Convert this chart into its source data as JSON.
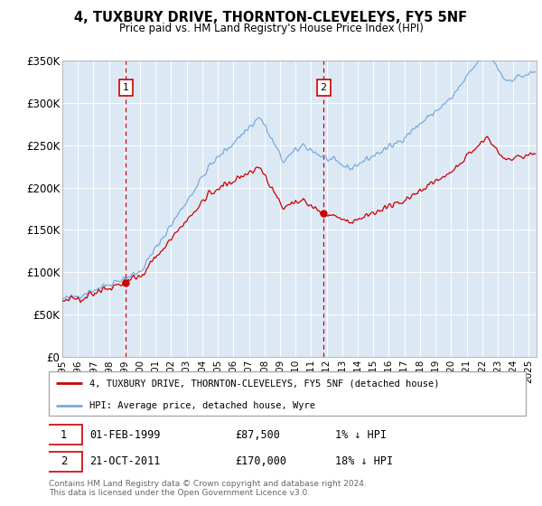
{
  "title": "4, TUXBURY DRIVE, THORNTON-CLEVELEYS, FY5 5NF",
  "subtitle": "Price paid vs. HM Land Registry's House Price Index (HPI)",
  "ylim": [
    0,
    350000
  ],
  "yticks": [
    0,
    50000,
    100000,
    150000,
    200000,
    250000,
    300000,
    350000
  ],
  "ytick_labels": [
    "£0",
    "£50K",
    "£100K",
    "£150K",
    "£200K",
    "£250K",
    "£300K",
    "£350K"
  ],
  "plot_bg": "#dce9f5",
  "sale1_date_num": 1999.083,
  "sale1_price": 87500,
  "sale1_label": "01-FEB-1999",
  "sale1_price_str": "£87,500",
  "sale1_hpi_str": "1% ↓ HPI",
  "sale2_date_num": 2011.8,
  "sale2_price": 170000,
  "sale2_label": "21-OCT-2011",
  "sale2_price_str": "£170,000",
  "sale2_hpi_str": "18% ↓ HPI",
  "legend_line1": "4, TUXBURY DRIVE, THORNTON-CLEVELEYS, FY5 5NF (detached house)",
  "legend_line2": "HPI: Average price, detached house, Wyre",
  "footer1": "Contains HM Land Registry data © Crown copyright and database right 2024.",
  "footer2": "This data is licensed under the Open Government Licence v3.0.",
  "red_line_color": "#cc0000",
  "blue_line_color": "#7aaadd",
  "marker_color": "#cc0000"
}
